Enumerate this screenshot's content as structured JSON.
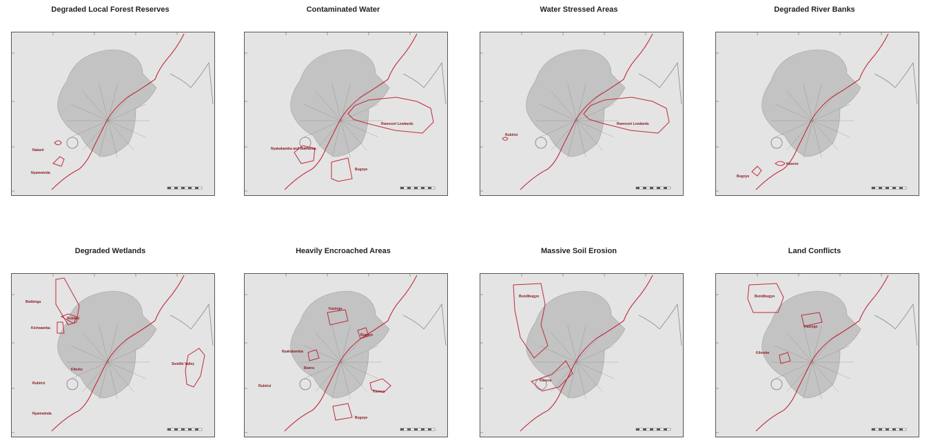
{
  "panels": [
    {
      "id": "forest",
      "title": "Degraded Local Forest Reserves",
      "areas": [
        {
          "name": "Nakarir"
        },
        {
          "name": "Nyamwinda"
        }
      ]
    },
    {
      "id": "water",
      "title": "Contaminated Water",
      "areas": [
        {
          "name": "Nyakabamba and Bukharaa"
        },
        {
          "name": "Rwenzori Lowlands"
        },
        {
          "name": "Bugoye"
        }
      ]
    },
    {
      "id": "stressed",
      "title": "Water Stressed Areas",
      "areas": [
        {
          "name": "Rubirizi"
        },
        {
          "name": "Rwenzori Lowlands"
        }
      ]
    },
    {
      "id": "riverbanks",
      "title": "Degraded River Banks",
      "areas": [
        {
          "name": "Bugoye"
        },
        {
          "name": "Kasese"
        }
      ]
    },
    {
      "id": "wetlands",
      "title": "Degraded Wetlands",
      "areas": [
        {
          "name": "Bwibinga"
        },
        {
          "name": "Kichwamba"
        },
        {
          "name": "Rubirizi"
        },
        {
          "name": "Kibuku"
        },
        {
          "name": "Nyamwinda"
        },
        {
          "name": "Rubirizi"
        },
        {
          "name": "Semliki Valley"
        }
      ]
    },
    {
      "id": "encroached",
      "title": "Heavily Encroached Areas",
      "areas": [
        {
          "name": "Kazingo"
        },
        {
          "name": "Bugoye"
        },
        {
          "name": "Nyakabamba"
        },
        {
          "name": "Rubirizi"
        },
        {
          "name": "Bwera"
        },
        {
          "name": "Kasese"
        },
        {
          "name": "Bugoye"
        }
      ]
    },
    {
      "id": "erosion",
      "title": "Massive Soil Erosion",
      "areas": [
        {
          "name": "Bundibugyo"
        },
        {
          "name": "Kasese"
        }
      ]
    },
    {
      "id": "conflicts",
      "title": "Land Conflicts",
      "areas": [
        {
          "name": "Bundibugyo"
        },
        {
          "name": "Kazingo"
        },
        {
          "name": "Kilembe"
        }
      ]
    }
  ],
  "colors": {
    "boundary": "#c0283a",
    "relief": "#8a8a8a",
    "background": "#e4e4e4"
  }
}
